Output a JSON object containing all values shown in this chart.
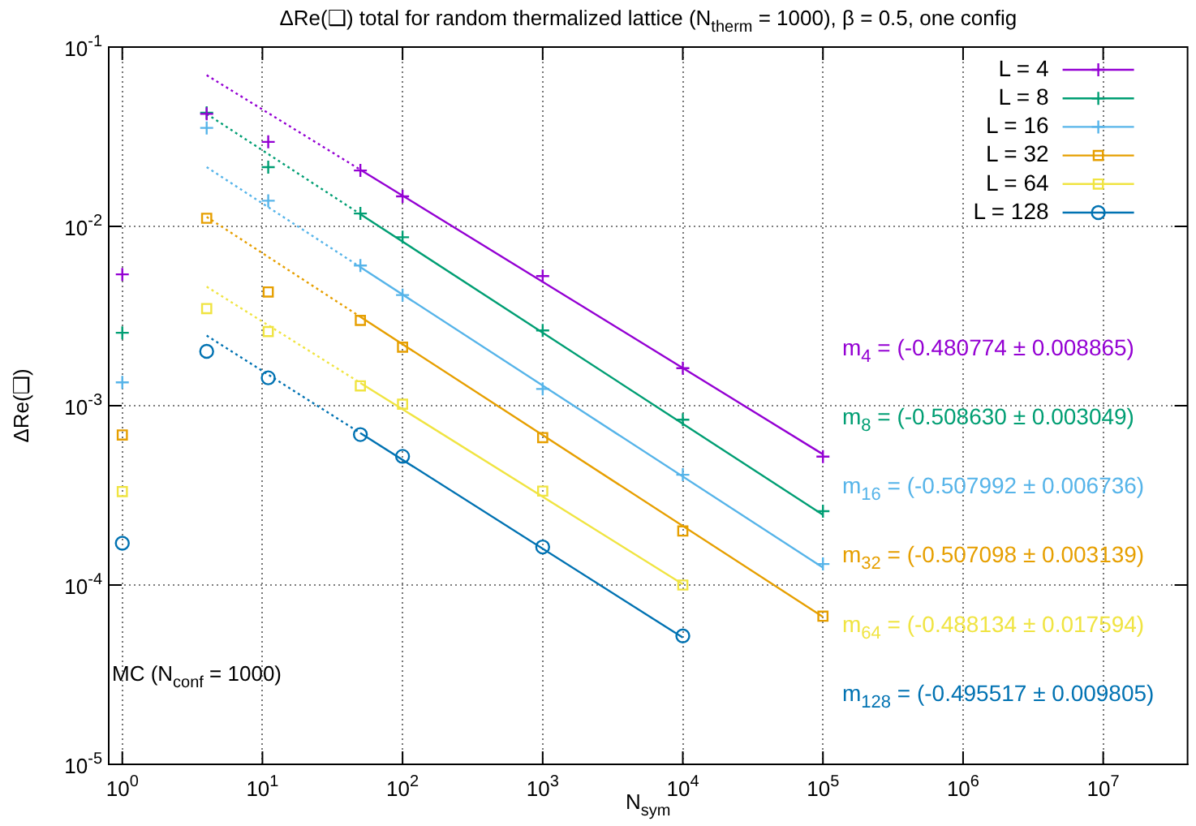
{
  "chart_data": {
    "type": "scatter",
    "title": "ΔRe(❑) total for random thermalized lattice (N$_{therm}$ = 1000), β = 0.5, one config",
    "xlabel": "N$_{sym}$",
    "ylabel": "ΔRe(❑)",
    "log": "xy",
    "grid": true,
    "legend": "top right",
    "xlim": [
      0.8,
      40000000
    ],
    "ylim": [
      1e-05,
      0.1
    ],
    "xticks": [
      {
        "value": 1,
        "label": "10$^{0}$"
      },
      {
        "value": 10,
        "label": "10$^{1}$"
      },
      {
        "value": 100,
        "label": "10$^{2}$"
      },
      {
        "value": 1000,
        "label": "10$^{3}$"
      },
      {
        "value": 10000,
        "label": "10$^{4}$"
      },
      {
        "value": 100000,
        "label": "10$^{5}$"
      },
      {
        "value": 1000000,
        "label": "10$^{6}$"
      },
      {
        "value": 10000000,
        "label": "10$^{7}$"
      }
    ],
    "yticks": [
      {
        "value": 1e-05,
        "label": "10$^{-5}$"
      },
      {
        "value": 0.0001,
        "label": "10$^{-4}$"
      },
      {
        "value": 0.001,
        "label": "10$^{-3}$"
      },
      {
        "value": 0.01,
        "label": "10$^{-2}$"
      },
      {
        "value": 0.1,
        "label": "10$^{-1}$"
      }
    ],
    "series": [
      {
        "name": "L = 4",
        "marker": "cross",
        "color": "#9400d3",
        "x": [
          1,
          4,
          11,
          50,
          100,
          1000,
          10000,
          100000
        ],
        "values": [
          0.0054,
          0.0424,
          0.0296,
          0.0205,
          0.0147,
          0.00528,
          0.00162,
          0.00052
        ]
      },
      {
        "name": "L = 8",
        "marker": "cross",
        "color": "#009e73",
        "x": [
          1,
          4,
          11,
          50,
          100,
          1000,
          10000,
          100000
        ],
        "values": [
          0.00255,
          0.043,
          0.0214,
          0.0118,
          0.0087,
          0.00263,
          0.000835,
          0.000258
        ]
      },
      {
        "name": "L = 16",
        "marker": "cross",
        "color": "#56b4e9",
        "x": [
          1,
          4,
          11,
          50,
          100,
          1000,
          10000,
          100000
        ],
        "values": [
          0.00135,
          0.0354,
          0.0139,
          0.00605,
          0.00414,
          0.00124,
          0.000412,
          0.000131
        ]
      },
      {
        "name": "L = 32",
        "marker": "square",
        "color": "#e69f00",
        "x": [
          1,
          4,
          11,
          50,
          100,
          1000,
          10000,
          100000
        ],
        "values": [
          0.000687,
          0.0111,
          0.00431,
          0.00299,
          0.00212,
          0.000664,
          0.0002,
          6.7e-05
        ]
      },
      {
        "name": "L = 64",
        "marker": "square",
        "color": "#f0e442",
        "x": [
          1,
          4,
          11,
          50,
          100,
          1000,
          10000
        ],
        "values": [
          0.000332,
          0.00348,
          0.00259,
          0.00129,
          0.00102,
          0.000334,
          0.0001
        ]
      },
      {
        "name": "L = 128",
        "marker": "circle",
        "color": "#0072b2",
        "x": [
          1,
          4,
          11,
          50,
          100,
          1000,
          10000
        ],
        "values": [
          0.000171,
          0.00201,
          0.00143,
          0.00069,
          0.000522,
          0.000163,
          5.2e-05
        ]
      },
      {
        "type": "line",
        "line_style": "dotted",
        "color": "#9400d3",
        "x": [
          4,
          50
        ],
        "values": [
          0.0697,
          0.0207
        ]
      },
      {
        "type": "line",
        "line_style": "solid",
        "color": "#9400d3",
        "x": [
          50,
          100000
        ],
        "values": [
          0.0207,
          0.000536
        ]
      },
      {
        "type": "line",
        "line_style": "dotted",
        "color": "#009e73",
        "x": [
          4,
          50
        ],
        "values": [
          0.0424,
          0.0117
        ]
      },
      {
        "type": "line",
        "line_style": "solid",
        "color": "#009e73",
        "x": [
          50,
          100000
        ],
        "values": [
          0.0117,
          0.000246
        ]
      },
      {
        "type": "line",
        "line_style": "dotted",
        "color": "#56b4e9",
        "x": [
          4,
          50
        ],
        "values": [
          0.0214,
          0.00593
        ]
      },
      {
        "type": "line",
        "line_style": "solid",
        "color": "#56b4e9",
        "x": [
          50,
          100000
        ],
        "values": [
          0.00593,
          0.000125
        ]
      },
      {
        "type": "line",
        "line_style": "dotted",
        "color": "#e69f00",
        "x": [
          4,
          50
        ],
        "values": [
          0.0113,
          0.00313
        ]
      },
      {
        "type": "line",
        "line_style": "solid",
        "color": "#e69f00",
        "x": [
          50,
          100000
        ],
        "values": [
          0.00313,
          6.64e-05
        ]
      },
      {
        "type": "line",
        "line_style": "dotted",
        "color": "#f0e442",
        "x": [
          4,
          50
        ],
        "values": [
          0.00461,
          0.00134
        ]
      },
      {
        "type": "line",
        "line_style": "solid",
        "color": "#f0e442",
        "x": [
          50,
          10000
        ],
        "values": [
          0.00134,
          0.000101
        ]
      },
      {
        "type": "line",
        "line_style": "dotted",
        "color": "#0072b2",
        "x": [
          4,
          50
        ],
        "values": [
          0.00246,
          0.000704
        ]
      },
      {
        "type": "line",
        "line_style": "solid",
        "color": "#0072b2",
        "x": [
          50,
          10000
        ],
        "values": [
          0.000704,
          5.09e-05
        ]
      }
    ],
    "annotations": [
      "m$_{4}$ = (-0.480774 ± 0.008865)",
      "m$_{8}$ = (-0.508630 ± 0.003049)",
      "m$_{16}$ = (-0.507992 ± 0.006736)",
      "m$_{32}$ = (-0.507098 ± 0.003139)",
      "m$_{64}$ = (-0.488134 ± 0.017594)",
      "m$_{128}$ = (-0.495517 ± 0.009805)",
      "MC (N$_{conf}$ = 1000)"
    ]
  }
}
